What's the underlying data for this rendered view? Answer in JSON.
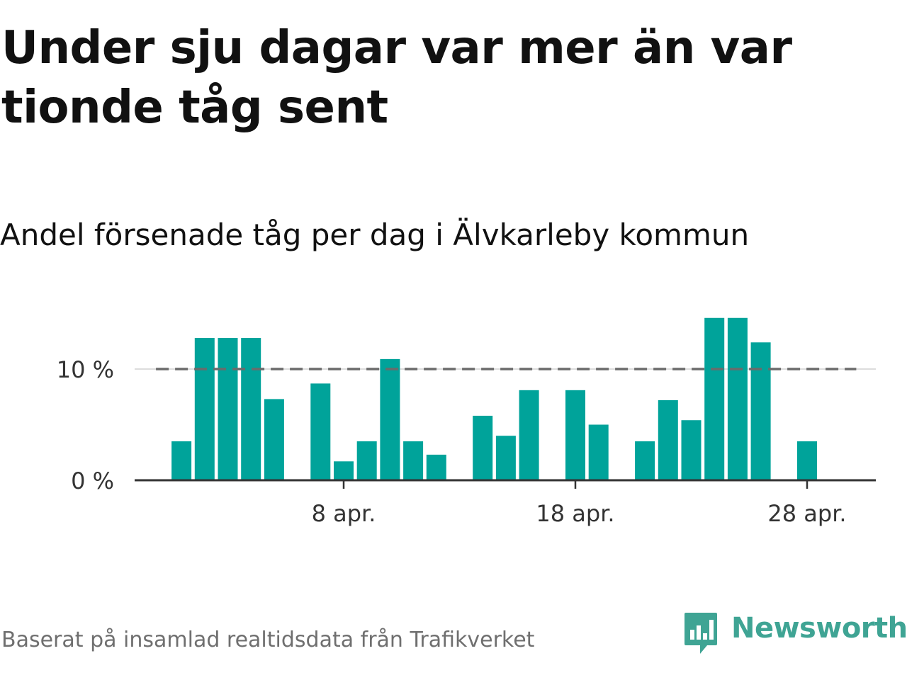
{
  "title": "Under sju dagar var mer än var tionde tåg sent",
  "subtitle": "Andel försenade tåg per dag i Älvkarleby kommun",
  "source": "Baserat på insamlad realtidsdata från Trafikverket",
  "brand": {
    "name": "Newsworthy",
    "color": "#3fa494",
    "icon": "bar-chart-speech-bubble-icon"
  },
  "colors": {
    "bar": "#00a39a",
    "reference_line": "#6b6b6b",
    "gridline": "#dddddd",
    "axis": "#333333"
  },
  "chart_data": {
    "type": "bar",
    "title": "Andel försenade tåg per dag i Älvkarleby kommun",
    "xlabel": "",
    "ylabel": "",
    "unit": "%",
    "ylim": [
      0,
      15
    ],
    "y_ticks": [
      0,
      10
    ],
    "y_tick_labels": [
      "0 %",
      "10 %"
    ],
    "x_tick_days": [
      8,
      18,
      28
    ],
    "x_tick_labels": [
      "8 apr.",
      "18 apr.",
      "28 apr."
    ],
    "reference_line": {
      "value": 10,
      "style": "dashed"
    },
    "x_range_days": [
      -1,
      31
    ],
    "days": [
      1,
      2,
      3,
      4,
      5,
      6,
      7,
      8,
      9,
      10,
      11,
      12,
      13,
      14,
      15,
      16,
      17,
      18,
      19,
      20,
      21,
      22,
      23,
      24,
      25,
      26,
      27,
      28,
      29,
      30
    ],
    "values": [
      3.5,
      12.8,
      12.8,
      12.8,
      7.3,
      0,
      8.7,
      1.7,
      3.5,
      10.9,
      3.5,
      2.3,
      0,
      5.8,
      4.0,
      8.1,
      0,
      8.1,
      5.0,
      0,
      3.5,
      7.2,
      5.4,
      14.6,
      14.6,
      12.4,
      0,
      3.5,
      0,
      0
    ]
  }
}
